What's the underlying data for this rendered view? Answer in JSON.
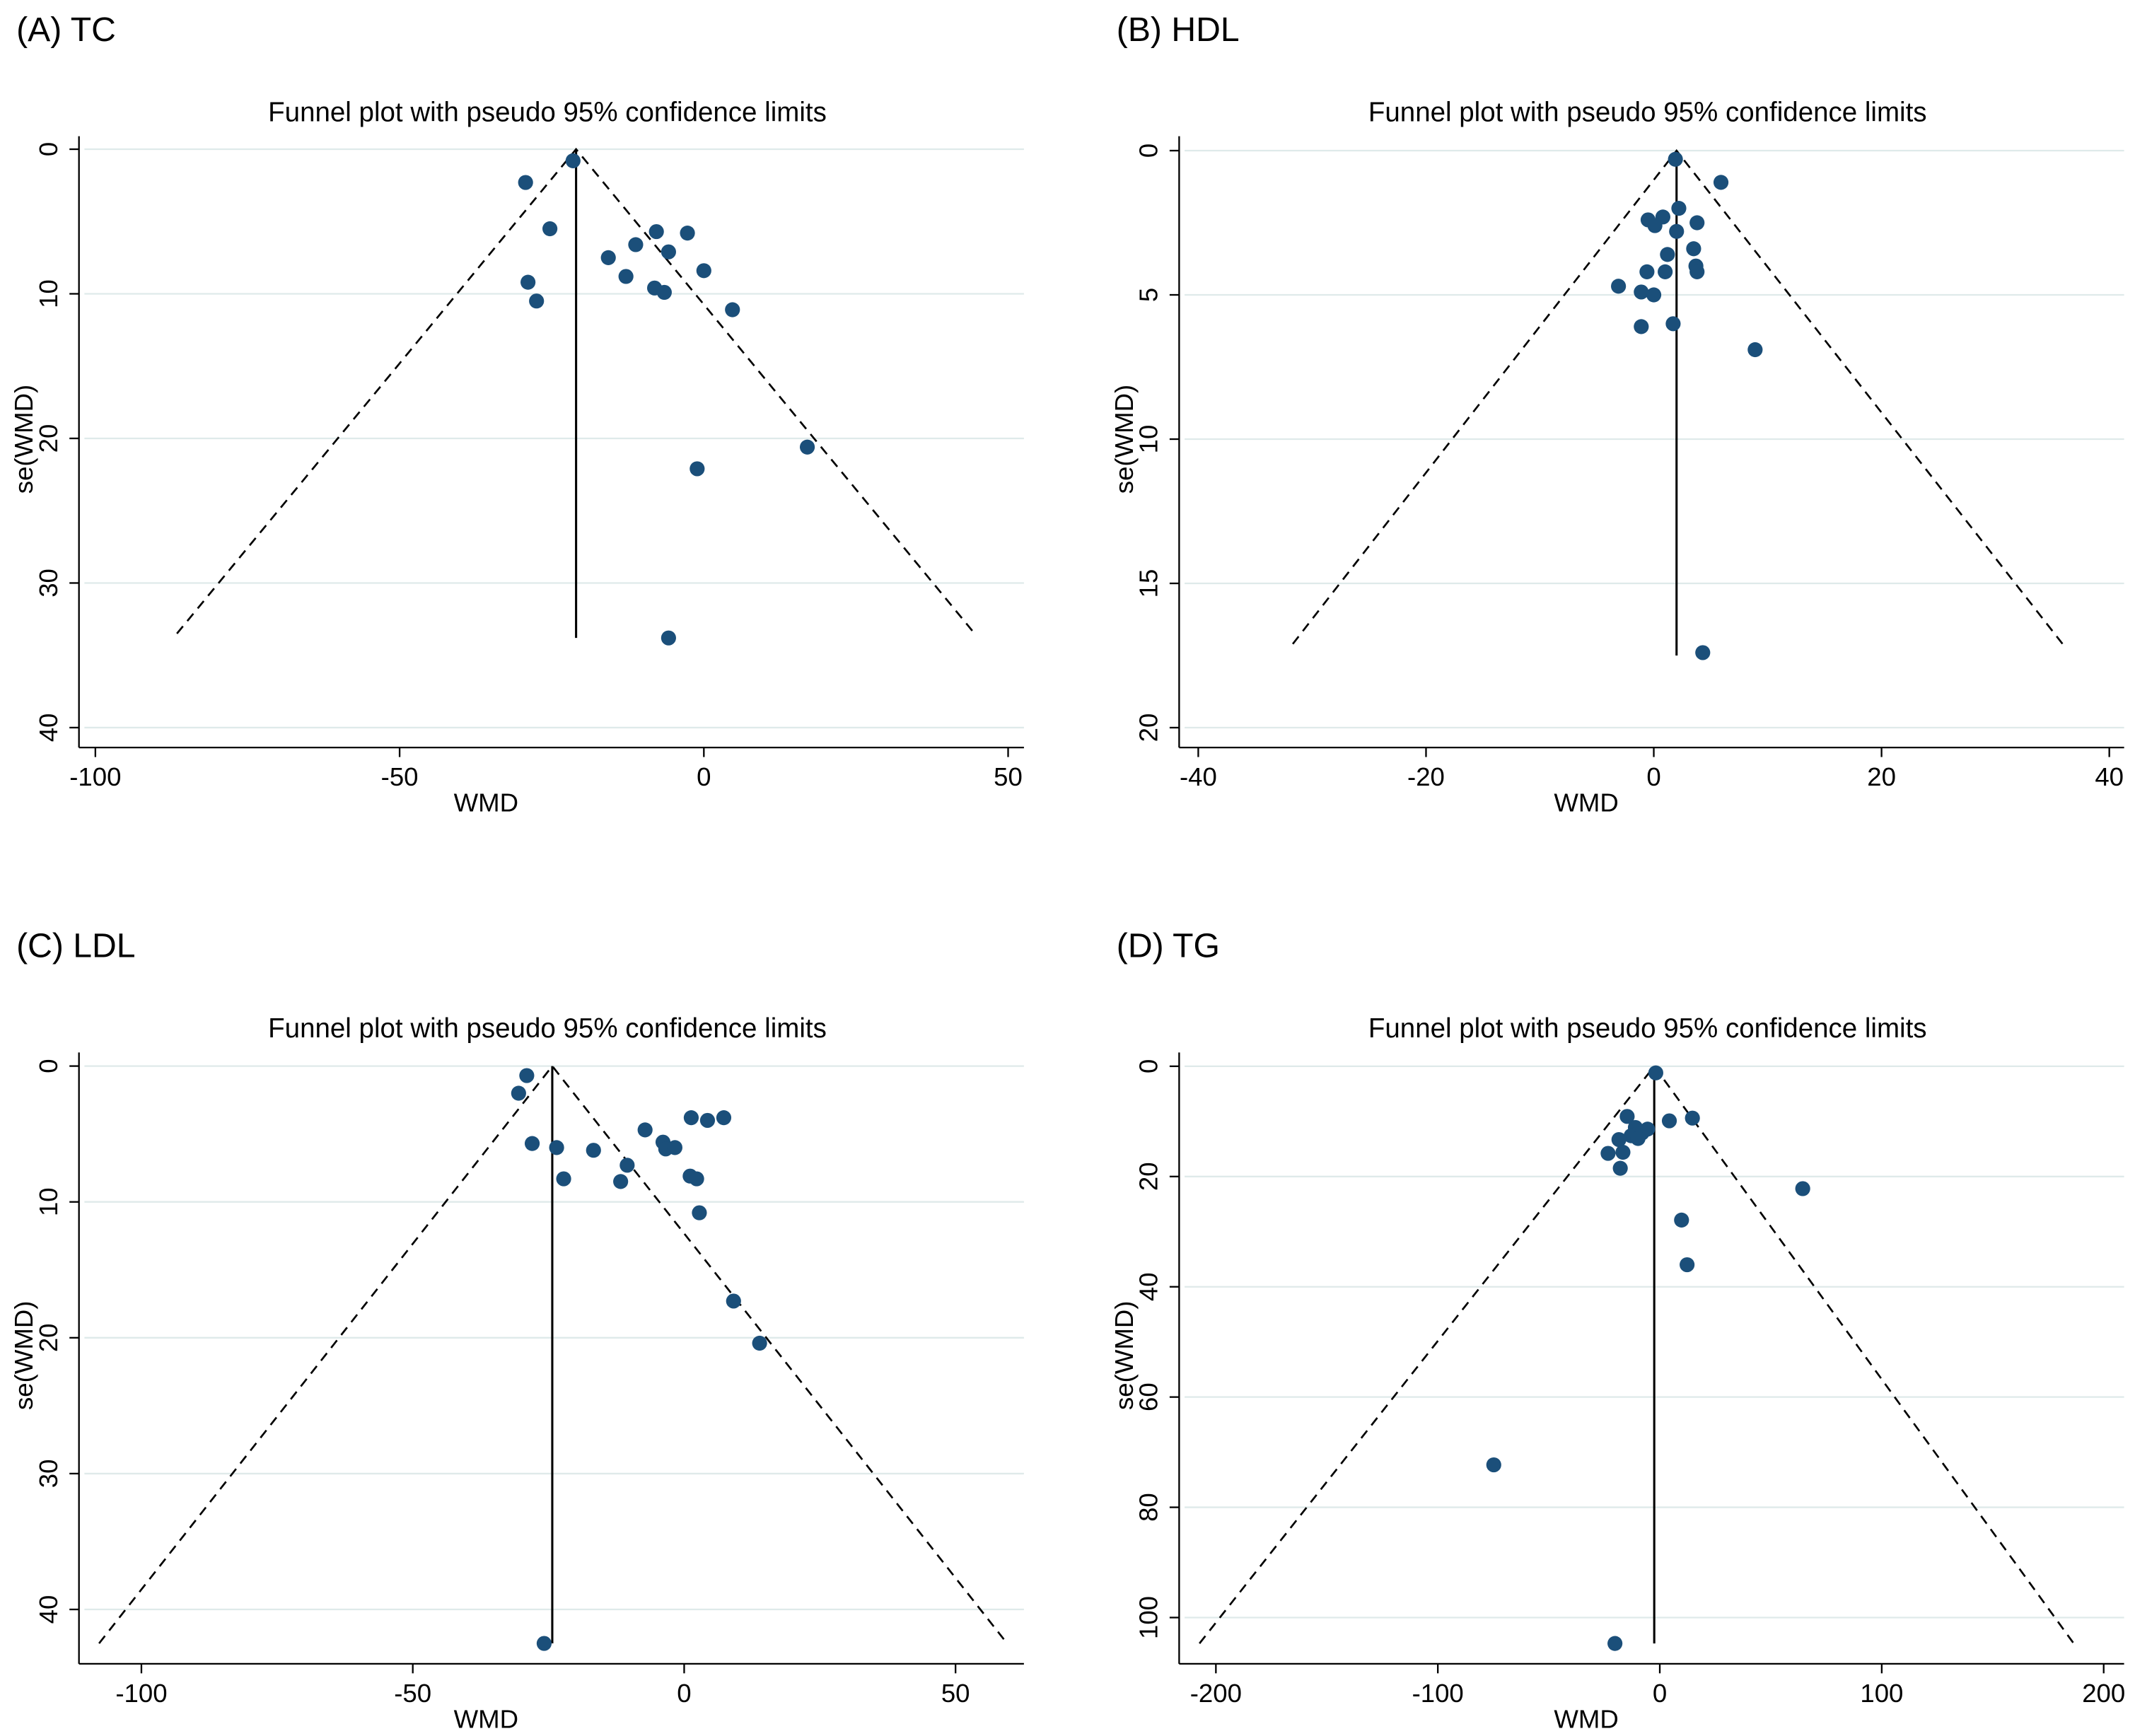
{
  "chart_data": [
    {
      "type": "funnel",
      "panel_label": "(A) TC",
      "title": "Funnel plot with pseudo 95% confidence limits",
      "x_label": "WMD",
      "y_label": "se(WMD)",
      "x": [
        -29.3,
        -21.5,
        -25.3,
        -15.7,
        -11.2,
        -7.8,
        -5.8,
        -2.7,
        0,
        -12.8,
        -8.1,
        -6.5,
        -28.9,
        -27.5,
        4.7,
        17.0,
        -1.1,
        -5.8
      ],
      "values": [
        2.3,
        0.8,
        5.5,
        7.5,
        6.6,
        5.7,
        7.1,
        5.8,
        8.4,
        8.8,
        9.6,
        9.9,
        9.2,
        10.5,
        11.1,
        20.6,
        22.1,
        33.8
      ],
      "color": "#1b4f7a",
      "reference_line": {
        "x": -21.0,
        "se_end": 33.8
      },
      "funnel": {
        "base_se": 33.5,
        "left": -86.6,
        "right": 44.5
      },
      "xlim": [
        -101.8,
        52.6
      ],
      "ylim": [
        -0.9,
        41.0
      ],
      "y_inverted": true,
      "xticks": [
        -100,
        -50,
        0,
        50
      ],
      "yticks": [
        0,
        10,
        20,
        30,
        40
      ],
      "grid": true
    },
    {
      "type": "funnel",
      "panel_label": "(B)  HDL",
      "title": "Funnel plot with pseudo 95% confidence limits",
      "x_label": "WMD",
      "y_label": "se(WMD)",
      "x": [
        1.9,
        5.9,
        2.2,
        0.8,
        -0.5,
        0.1,
        3.8,
        2.0,
        3.5,
        1.2,
        3.7,
        3.8,
        -0.6,
        1.0,
        -3.1,
        -1.1,
        0,
        1.7,
        -1.1,
        8.9,
        4.3
      ],
      "values": [
        0.3,
        1.1,
        2.0,
        2.3,
        2.4,
        2.6,
        2.5,
        2.8,
        3.4,
        3.6,
        4.0,
        4.2,
        4.2,
        4.2,
        4.7,
        4.9,
        5.0,
        6.0,
        6.1,
        6.9,
        17.4
      ],
      "color": "#1b4f7a",
      "reference_line": {
        "x": 2.0,
        "se_end": 17.5
      },
      "funnel": {
        "base_se": 17.1,
        "left": -31.7,
        "right": 35.9
      },
      "xlim": [
        -41.2,
        41.3
      ],
      "ylim": [
        -0.5,
        20.5
      ],
      "y_inverted": true,
      "xticks": [
        -40,
        -20,
        0,
        20,
        40
      ],
      "yticks": [
        0,
        5,
        10,
        15,
        20
      ],
      "grid": true
    },
    {
      "type": "funnel",
      "panel_label": "(C)  LDL",
      "title": "Funnel plot with pseudo 95% confidence limits",
      "x_label": "WMD",
      "y_label": "se(WMD)",
      "x": [
        -29.0,
        -30.5,
        -28.0,
        -23.5,
        -22.2,
        -16.7,
        -10.5,
        -11.7,
        -7.2,
        -3.9,
        -3.4,
        -1.7,
        1.3,
        4.3,
        7.3,
        1.1,
        2.3,
        2.8,
        9.1,
        13.9,
        -25.8
      ],
      "values": [
        0.7,
        2.0,
        5.7,
        6.0,
        8.3,
        6.2,
        7.3,
        8.5,
        4.7,
        5.6,
        6.1,
        6.0,
        3.8,
        4.0,
        3.8,
        8.1,
        8.3,
        10.8,
        17.3,
        20.4,
        42.5
      ],
      "color": "#1b4f7a",
      "reference_line": {
        "x": -24.3,
        "se_end": 42.5
      },
      "funnel": {
        "base_se": 42.5,
        "left": -107.8,
        "right": 59.5
      },
      "xlim": [
        -110.5,
        62.6
      ],
      "ylim": [
        -1.0,
        43.6
      ],
      "y_inverted": true,
      "xticks": [
        -100,
        -50,
        0,
        50
      ],
      "yticks": [
        0,
        10,
        20,
        30,
        40
      ],
      "grid": true
    },
    {
      "type": "funnel",
      "panel_label": "(D)  TG",
      "title": "Funnel plot with pseudo 95% confidence limits",
      "x_label": "WMD",
      "y_label": "se(WMD)",
      "x": [
        -1.8,
        -14.7,
        14.7,
        4.3,
        -11,
        -8,
        -5.5,
        -12.9,
        -18.4,
        -9.8,
        -23.3,
        -16.6,
        -17.8,
        64.4,
        9.8,
        12.3,
        -74.8,
        -20.2
      ],
      "values": [
        1.2,
        9.1,
        9.4,
        9.9,
        11.1,
        12.1,
        11.4,
        12.6,
        13.3,
        13.1,
        15.8,
        15.6,
        18.5,
        22.2,
        27.9,
        36.0,
        72.3,
        104.7
      ],
      "color": "#1b4f7a",
      "reference_line": {
        "x": -2.5,
        "se_end": 104.7
      },
      "funnel": {
        "base_se": 104.7,
        "left": -207.4,
        "right": 186.5
      },
      "xlim": [
        -214.1,
        209.2
      ],
      "ylim": [
        -2.5,
        107.4
      ],
      "y_inverted": true,
      "xticks": [
        -200,
        -100,
        0,
        100,
        200
      ],
      "yticks": [
        0,
        20,
        40,
        60,
        80,
        100
      ],
      "grid": true
    }
  ]
}
